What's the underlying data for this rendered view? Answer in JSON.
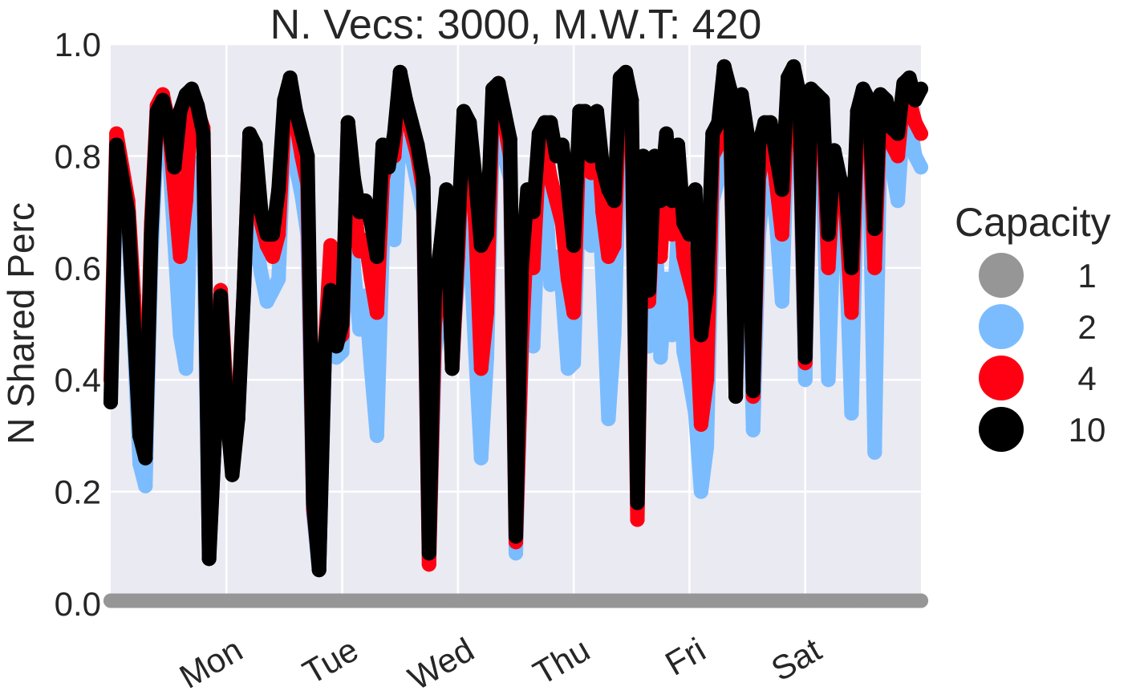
{
  "chart_data": {
    "type": "scatter",
    "title": "N. Vecs: 3000, M.W.T: 420",
    "ylabel": "N Shared Perc",
    "xlabel": "",
    "ylim": [
      0.0,
      1.0
    ],
    "xlim": [
      0,
      7
    ],
    "grid": true,
    "yticks": [
      {
        "value": 0.0,
        "label": "0.0"
      },
      {
        "value": 0.2,
        "label": "0.2"
      },
      {
        "value": 0.4,
        "label": "0.4"
      },
      {
        "value": 0.6,
        "label": "0.6"
      },
      {
        "value": 0.8,
        "label": "0.8"
      },
      {
        "value": 1.0,
        "label": "1.0"
      }
    ],
    "xticks": [
      {
        "value": 1,
        "label": "Mon"
      },
      {
        "value": 2,
        "label": "Tue"
      },
      {
        "value": 3,
        "label": "Wed"
      },
      {
        "value": 4,
        "label": "Thu"
      },
      {
        "value": 5,
        "label": "Fri"
      },
      {
        "value": 6,
        "label": "Sat"
      }
    ],
    "legend": {
      "title": "Capacity",
      "placement": "right",
      "entries": [
        {
          "label": "1",
          "color": "#969696"
        },
        {
          "label": "2",
          "color": "#7bbcff"
        },
        {
          "label": "4",
          "color": "#ff0012"
        },
        {
          "label": "10",
          "color": "#000000"
        }
      ]
    },
    "colors": {
      "background": "#eaeaf2",
      "grid": "#ffffff"
    },
    "series": [
      {
        "name": "1",
        "color": "#969696",
        "x": [
          0,
          0.5,
          1,
          1.5,
          2,
          2.5,
          3,
          3.5,
          4,
          4.5,
          5,
          5.5,
          6,
          6.5,
          7
        ],
        "y": [
          0.005,
          0.005,
          0.005,
          0.005,
          0.005,
          0.005,
          0.005,
          0.005,
          0.005,
          0.005,
          0.005,
          0.005,
          0.005,
          0.005,
          0.005
        ]
      },
      {
        "name": "2",
        "color": "#7bbcff",
        "x": [
          0.0,
          0.05,
          0.1,
          0.15,
          0.2,
          0.25,
          0.3,
          0.35,
          0.4,
          0.45,
          0.5,
          0.55,
          0.6,
          0.65,
          0.7,
          0.75,
          0.8,
          0.85,
          0.9,
          0.95,
          1.0,
          1.05,
          1.1,
          1.15,
          1.2,
          1.25,
          1.3,
          1.35,
          1.4,
          1.45,
          1.5,
          1.55,
          1.6,
          1.65,
          1.7,
          1.75,
          1.8,
          1.85,
          1.9,
          1.95,
          2.0,
          2.05,
          2.1,
          2.15,
          2.2,
          2.25,
          2.3,
          2.35,
          2.4,
          2.45,
          2.5,
          2.55,
          2.6,
          2.65,
          2.7,
          2.75,
          2.8,
          2.85,
          2.9,
          2.95,
          3.0,
          3.05,
          3.1,
          3.15,
          3.2,
          3.25,
          3.3,
          3.35,
          3.4,
          3.45,
          3.5,
          3.55,
          3.6,
          3.65,
          3.7,
          3.75,
          3.8,
          3.85,
          3.9,
          3.95,
          4.0,
          4.05,
          4.1,
          4.15,
          4.2,
          4.25,
          4.3,
          4.35,
          4.4,
          4.45,
          4.5,
          4.55,
          4.6,
          4.65,
          4.7,
          4.75,
          4.8,
          4.85,
          4.9,
          4.95,
          5.0,
          5.05,
          5.1,
          5.15,
          5.2,
          5.25,
          5.3,
          5.35,
          5.4,
          5.45,
          5.5,
          5.55,
          5.6,
          5.65,
          5.7,
          5.75,
          5.8,
          5.85,
          5.9,
          5.95,
          6.0,
          6.05,
          6.1,
          6.15,
          6.2,
          6.25,
          6.3,
          6.35,
          6.4,
          6.45,
          6.5,
          6.55,
          6.6,
          6.65,
          6.7,
          6.75,
          6.8,
          6.85,
          6.9,
          6.95,
          7.0
        ],
        "y": [
          0.36,
          0.78,
          0.72,
          0.68,
          0.48,
          0.25,
          0.21,
          0.62,
          0.84,
          0.87,
          0.82,
          0.65,
          0.48,
          0.42,
          0.79,
          0.7,
          0.7,
          0.09,
          0.3,
          0.55,
          0.36,
          0.28,
          0.33,
          0.55,
          0.8,
          0.65,
          0.59,
          0.54,
          0.56,
          0.58,
          0.84,
          0.86,
          0.78,
          0.73,
          0.66,
          0.16,
          0.06,
          0.44,
          0.6,
          0.44,
          0.45,
          0.82,
          0.6,
          0.49,
          0.55,
          0.42,
          0.3,
          0.65,
          0.75,
          0.65,
          0.85,
          0.84,
          0.8,
          0.75,
          0.7,
          0.08,
          0.45,
          0.52,
          0.64,
          0.45,
          0.58,
          0.85,
          0.66,
          0.45,
          0.26,
          0.44,
          0.84,
          0.86,
          0.8,
          0.76,
          0.09,
          0.44,
          0.64,
          0.46,
          0.72,
          0.77,
          0.57,
          0.62,
          0.56,
          0.42,
          0.43,
          0.76,
          0.76,
          0.64,
          0.78,
          0.58,
          0.33,
          0.48,
          0.84,
          0.85,
          0.8,
          0.17,
          0.72,
          0.46,
          0.7,
          0.44,
          0.58,
          0.48,
          0.66,
          0.45,
          0.4,
          0.34,
          0.2,
          0.28,
          0.72,
          0.76,
          0.93,
          0.85,
          0.4,
          0.84,
          0.7,
          0.31,
          0.66,
          0.77,
          0.78,
          0.68,
          0.54,
          0.87,
          0.9,
          0.83,
          0.4,
          0.86,
          0.83,
          0.8,
          0.4,
          0.7,
          0.66,
          0.64,
          0.34,
          0.8,
          0.84,
          0.84,
          0.27,
          0.86,
          0.8,
          0.78,
          0.72,
          0.88,
          0.86,
          0.8,
          0.78
        ]
      },
      {
        "name": "4",
        "color": "#ff0012",
        "x": [
          0.0,
          0.05,
          0.1,
          0.15,
          0.2,
          0.25,
          0.3,
          0.35,
          0.4,
          0.45,
          0.5,
          0.55,
          0.6,
          0.65,
          0.7,
          0.75,
          0.8,
          0.85,
          0.9,
          0.95,
          1.0,
          1.05,
          1.1,
          1.15,
          1.2,
          1.25,
          1.3,
          1.35,
          1.4,
          1.45,
          1.5,
          1.55,
          1.6,
          1.65,
          1.7,
          1.75,
          1.8,
          1.85,
          1.9,
          1.95,
          2.0,
          2.05,
          2.1,
          2.15,
          2.2,
          2.25,
          2.3,
          2.35,
          2.4,
          2.45,
          2.5,
          2.55,
          2.6,
          2.65,
          2.7,
          2.75,
          2.8,
          2.85,
          2.9,
          2.95,
          3.0,
          3.05,
          3.1,
          3.15,
          3.2,
          3.25,
          3.3,
          3.35,
          3.4,
          3.45,
          3.5,
          3.55,
          3.6,
          3.65,
          3.7,
          3.75,
          3.8,
          3.85,
          3.9,
          3.95,
          4.0,
          4.05,
          4.1,
          4.15,
          4.2,
          4.25,
          4.3,
          4.35,
          4.4,
          4.45,
          4.5,
          4.55,
          4.6,
          4.65,
          4.7,
          4.75,
          4.8,
          4.85,
          4.9,
          4.95,
          5.0,
          5.05,
          5.1,
          5.15,
          5.2,
          5.25,
          5.3,
          5.35,
          5.4,
          5.45,
          5.5,
          5.55,
          5.6,
          5.65,
          5.7,
          5.75,
          5.8,
          5.85,
          5.9,
          5.95,
          6.0,
          6.05,
          6.1,
          6.15,
          6.2,
          6.25,
          6.3,
          6.35,
          6.4,
          6.45,
          6.5,
          6.55,
          6.6,
          6.65,
          6.7,
          6.75,
          6.8,
          6.85,
          6.9,
          6.95,
          7.0
        ],
        "y": [
          0.4,
          0.84,
          0.78,
          0.72,
          0.55,
          0.3,
          0.28,
          0.68,
          0.89,
          0.91,
          0.86,
          0.74,
          0.62,
          0.72,
          0.91,
          0.88,
          0.85,
          0.09,
          0.3,
          0.56,
          0.37,
          0.29,
          0.34,
          0.56,
          0.84,
          0.8,
          0.68,
          0.64,
          0.62,
          0.66,
          0.87,
          0.89,
          0.86,
          0.8,
          0.75,
          0.17,
          0.07,
          0.46,
          0.64,
          0.47,
          0.48,
          0.86,
          0.72,
          0.63,
          0.65,
          0.58,
          0.52,
          0.76,
          0.8,
          0.8,
          0.94,
          0.88,
          0.84,
          0.8,
          0.74,
          0.07,
          0.5,
          0.58,
          0.7,
          0.42,
          0.62,
          0.87,
          0.8,
          0.68,
          0.42,
          0.52,
          0.91,
          0.93,
          0.86,
          0.8,
          0.11,
          0.46,
          0.68,
          0.6,
          0.8,
          0.82,
          0.76,
          0.72,
          0.68,
          0.58,
          0.52,
          0.85,
          0.84,
          0.77,
          0.86,
          0.7,
          0.62,
          0.64,
          0.92,
          0.94,
          0.88,
          0.15,
          0.79,
          0.54,
          0.78,
          0.62,
          0.8,
          0.66,
          0.76,
          0.62,
          0.58,
          0.54,
          0.32,
          0.4,
          0.8,
          0.82,
          0.96,
          0.88,
          0.4,
          0.88,
          0.84,
          0.37,
          0.76,
          0.82,
          0.84,
          0.75,
          0.66,
          0.91,
          0.94,
          0.88,
          0.43,
          0.9,
          0.88,
          0.87,
          0.6,
          0.78,
          0.72,
          0.7,
          0.52,
          0.86,
          0.9,
          0.88,
          0.6,
          0.9,
          0.88,
          0.82,
          0.8,
          0.91,
          0.9,
          0.86,
          0.84
        ]
      },
      {
        "name": "10",
        "color": "#000000",
        "x": [
          0.0,
          0.05,
          0.1,
          0.15,
          0.2,
          0.25,
          0.3,
          0.35,
          0.4,
          0.45,
          0.5,
          0.55,
          0.6,
          0.65,
          0.7,
          0.75,
          0.8,
          0.85,
          0.9,
          0.95,
          1.0,
          1.05,
          1.1,
          1.15,
          1.2,
          1.25,
          1.3,
          1.35,
          1.4,
          1.45,
          1.5,
          1.55,
          1.6,
          1.65,
          1.7,
          1.75,
          1.8,
          1.85,
          1.9,
          1.95,
          2.0,
          2.05,
          2.1,
          2.15,
          2.2,
          2.25,
          2.3,
          2.35,
          2.4,
          2.45,
          2.5,
          2.55,
          2.6,
          2.65,
          2.7,
          2.75,
          2.8,
          2.85,
          2.9,
          2.95,
          3.0,
          3.05,
          3.1,
          3.15,
          3.2,
          3.25,
          3.3,
          3.35,
          3.4,
          3.45,
          3.5,
          3.55,
          3.6,
          3.65,
          3.7,
          3.75,
          3.8,
          3.85,
          3.9,
          3.95,
          4.0,
          4.05,
          4.1,
          4.15,
          4.2,
          4.25,
          4.3,
          4.35,
          4.4,
          4.45,
          4.5,
          4.55,
          4.6,
          4.65,
          4.7,
          4.75,
          4.8,
          4.85,
          4.9,
          4.95,
          5.0,
          5.05,
          5.1,
          5.15,
          5.2,
          5.25,
          5.3,
          5.35,
          5.4,
          5.45,
          5.5,
          5.55,
          5.6,
          5.65,
          5.7,
          5.75,
          5.8,
          5.85,
          5.9,
          5.95,
          6.0,
          6.05,
          6.1,
          6.15,
          6.2,
          6.25,
          6.3,
          6.35,
          6.4,
          6.45,
          6.5,
          6.55,
          6.6,
          6.65,
          6.7,
          6.75,
          6.8,
          6.85,
          6.9,
          6.95,
          7.0
        ],
        "y": [
          0.36,
          0.82,
          0.76,
          0.7,
          0.5,
          0.3,
          0.26,
          0.66,
          0.88,
          0.9,
          0.86,
          0.78,
          0.88,
          0.91,
          0.92,
          0.89,
          0.84,
          0.08,
          0.3,
          0.55,
          0.35,
          0.23,
          0.33,
          0.56,
          0.84,
          0.82,
          0.7,
          0.66,
          0.66,
          0.74,
          0.9,
          0.94,
          0.88,
          0.84,
          0.8,
          0.18,
          0.06,
          0.46,
          0.56,
          0.46,
          0.5,
          0.86,
          0.76,
          0.7,
          0.72,
          0.68,
          0.62,
          0.82,
          0.78,
          0.84,
          0.95,
          0.9,
          0.86,
          0.82,
          0.76,
          0.09,
          0.56,
          0.64,
          0.74,
          0.42,
          0.66,
          0.88,
          0.86,
          0.76,
          0.64,
          0.66,
          0.92,
          0.93,
          0.88,
          0.83,
          0.12,
          0.6,
          0.74,
          0.7,
          0.84,
          0.86,
          0.86,
          0.8,
          0.82,
          0.74,
          0.64,
          0.88,
          0.88,
          0.8,
          0.88,
          0.78,
          0.74,
          0.72,
          0.94,
          0.95,
          0.9,
          0.18,
          0.8,
          0.56,
          0.8,
          0.72,
          0.84,
          0.72,
          0.82,
          0.68,
          0.66,
          0.74,
          0.48,
          0.56,
          0.84,
          0.86,
          0.96,
          0.92,
          0.37,
          0.91,
          0.84,
          0.38,
          0.82,
          0.86,
          0.86,
          0.8,
          0.74,
          0.94,
          0.96,
          0.91,
          0.44,
          0.92,
          0.91,
          0.9,
          0.66,
          0.81,
          0.76,
          0.74,
          0.6,
          0.88,
          0.92,
          0.9,
          0.67,
          0.91,
          0.9,
          0.85,
          0.84,
          0.93,
          0.94,
          0.9,
          0.92
        ]
      }
    ]
  }
}
